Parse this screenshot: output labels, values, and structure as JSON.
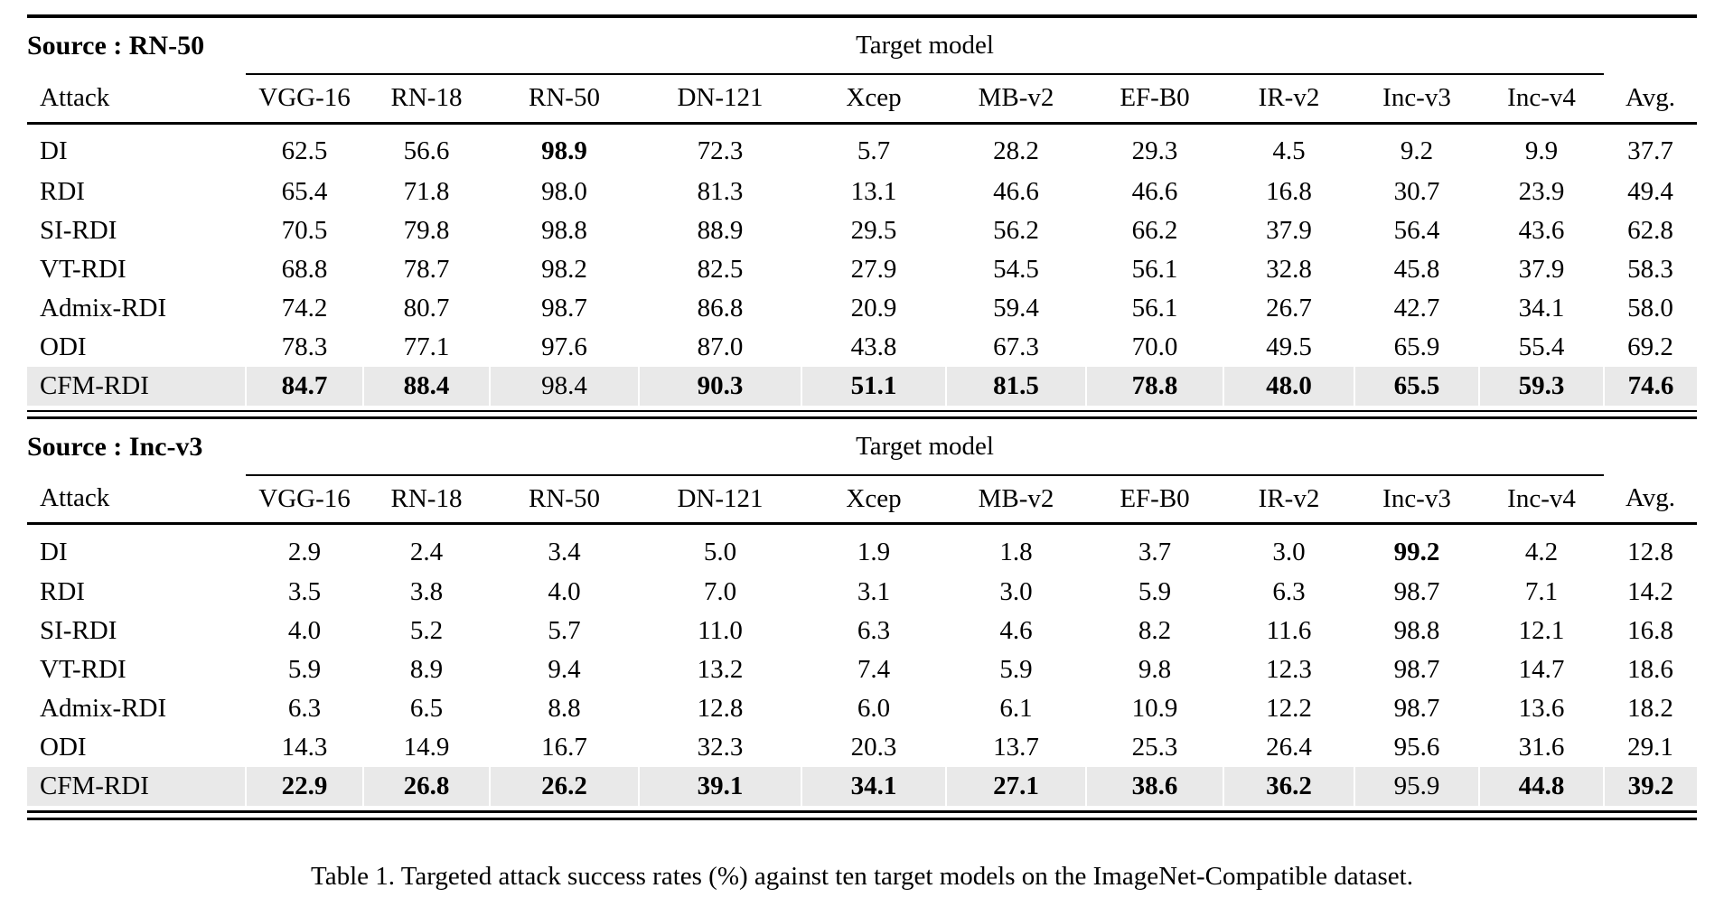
{
  "caption": "Table 1. Targeted attack success rates (%) against ten target models on the ImageNet-Compatible dataset.",
  "table": {
    "attack_header": "Attack",
    "target_model_header": "Target model",
    "highlight_color": "#e9e9e9",
    "columns": [
      "VGG-16",
      "RN-18",
      "RN-50",
      "DN-121",
      "Xcep",
      "MB-v2",
      "EF-B0",
      "IR-v2",
      "Inc-v3",
      "Inc-v4",
      "Avg."
    ],
    "sections": [
      {
        "source_label": "Source : RN-50",
        "rows": [
          {
            "attack": "DI",
            "values": [
              "62.5",
              "56.6",
              "98.9",
              "72.3",
              "5.7",
              "28.2",
              "29.3",
              "4.5",
              "9.2",
              "9.9",
              "37.7"
            ],
            "bold": [
              2
            ],
            "highlight": false
          },
          {
            "attack": "RDI",
            "values": [
              "65.4",
              "71.8",
              "98.0",
              "81.3",
              "13.1",
              "46.6",
              "46.6",
              "16.8",
              "30.7",
              "23.9",
              "49.4"
            ],
            "bold": [],
            "highlight": false
          },
          {
            "attack": "SI-RDI",
            "values": [
              "70.5",
              "79.8",
              "98.8",
              "88.9",
              "29.5",
              "56.2",
              "66.2",
              "37.9",
              "56.4",
              "43.6",
              "62.8"
            ],
            "bold": [],
            "highlight": false
          },
          {
            "attack": "VT-RDI",
            "values": [
              "68.8",
              "78.7",
              "98.2",
              "82.5",
              "27.9",
              "54.5",
              "56.1",
              "32.8",
              "45.8",
              "37.9",
              "58.3"
            ],
            "bold": [],
            "highlight": false
          },
          {
            "attack": "Admix-RDI",
            "values": [
              "74.2",
              "80.7",
              "98.7",
              "86.8",
              "20.9",
              "59.4",
              "56.1",
              "26.7",
              "42.7",
              "34.1",
              "58.0"
            ],
            "bold": [],
            "highlight": false
          },
          {
            "attack": "ODI",
            "values": [
              "78.3",
              "77.1",
              "97.6",
              "87.0",
              "43.8",
              "67.3",
              "70.0",
              "49.5",
              "65.9",
              "55.4",
              "69.2"
            ],
            "bold": [],
            "highlight": false
          },
          {
            "attack": "CFM-RDI",
            "values": [
              "84.7",
              "88.4",
              "98.4",
              "90.3",
              "51.1",
              "81.5",
              "78.8",
              "48.0",
              "65.5",
              "59.3",
              "74.6"
            ],
            "bold": [
              0,
              1,
              3,
              4,
              5,
              6,
              7,
              8,
              9,
              10
            ],
            "highlight": true
          }
        ]
      },
      {
        "source_label": "Source : Inc-v3",
        "rows": [
          {
            "attack": "DI",
            "values": [
              "2.9",
              "2.4",
              "3.4",
              "5.0",
              "1.9",
              "1.8",
              "3.7",
              "3.0",
              "99.2",
              "4.2",
              "12.8"
            ],
            "bold": [
              8
            ],
            "highlight": false
          },
          {
            "attack": "RDI",
            "values": [
              "3.5",
              "3.8",
              "4.0",
              "7.0",
              "3.1",
              "3.0",
              "5.9",
              "6.3",
              "98.7",
              "7.1",
              "14.2"
            ],
            "bold": [],
            "highlight": false
          },
          {
            "attack": "SI-RDI",
            "values": [
              "4.0",
              "5.2",
              "5.7",
              "11.0",
              "6.3",
              "4.6",
              "8.2",
              "11.6",
              "98.8",
              "12.1",
              "16.8"
            ],
            "bold": [],
            "highlight": false
          },
          {
            "attack": "VT-RDI",
            "values": [
              "5.9",
              "8.9",
              "9.4",
              "13.2",
              "7.4",
              "5.9",
              "9.8",
              "12.3",
              "98.7",
              "14.7",
              "18.6"
            ],
            "bold": [],
            "highlight": false
          },
          {
            "attack": "Admix-RDI",
            "values": [
              "6.3",
              "6.5",
              "8.8",
              "12.8",
              "6.0",
              "6.1",
              "10.9",
              "12.2",
              "98.7",
              "13.6",
              "18.2"
            ],
            "bold": [],
            "highlight": false
          },
          {
            "attack": "ODI",
            "values": [
              "14.3",
              "14.9",
              "16.7",
              "32.3",
              "20.3",
              "13.7",
              "25.3",
              "26.4",
              "95.6",
              "31.6",
              "29.1"
            ],
            "bold": [],
            "highlight": false
          },
          {
            "attack": "CFM-RDI",
            "values": [
              "22.9",
              "26.8",
              "26.2",
              "39.1",
              "34.1",
              "27.1",
              "38.6",
              "36.2",
              "95.9",
              "44.8",
              "39.2"
            ],
            "bold": [
              0,
              1,
              2,
              3,
              4,
              5,
              6,
              7,
              9,
              10
            ],
            "highlight": true
          }
        ]
      }
    ]
  }
}
